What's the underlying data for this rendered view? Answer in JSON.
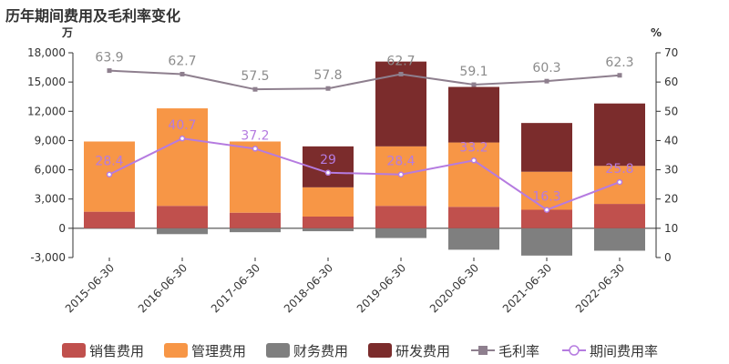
{
  "chart_data": {
    "type": "bar",
    "title": "历年期间费用及毛利率变化",
    "y_left_unit": "万",
    "y_right_unit": "%",
    "y_left_range": [
      -3000,
      18000
    ],
    "y_left_ticks": [
      "18,000",
      "15,000",
      "12,000",
      "9,000",
      "6,000",
      "3,000",
      "0",
      "-3,000"
    ],
    "y_right_range": [
      0,
      70
    ],
    "y_right_ticks": [
      "70",
      "60",
      "50",
      "40",
      "30",
      "20",
      "10",
      "0"
    ],
    "categories": [
      "2015-06-30",
      "2016-06-30",
      "2017-06-30",
      "2018-06-30",
      "2019-06-30",
      "2020-06-30",
      "2021-06-30",
      "2022-06-30"
    ],
    "bar_series": [
      {
        "name": "销售费用",
        "color": "#c0504d",
        "values": [
          1700,
          2300,
          1600,
          1200,
          2300,
          2200,
          1900,
          2500
        ]
      },
      {
        "name": "管理费用",
        "color": "#f79646",
        "values": [
          7200,
          10000,
          7300,
          3000,
          6100,
          6600,
          3900,
          3900
        ]
      },
      {
        "name": "财务费用",
        "color": "#7f7f7f",
        "values": [
          -50,
          -600,
          -400,
          -300,
          -1000,
          -2200,
          -2800,
          -2300
        ]
      },
      {
        "name": "研发费用",
        "color": "#7b2c2c",
        "values": [
          0,
          0,
          0,
          4200,
          8700,
          5700,
          5000,
          6400
        ]
      }
    ],
    "line_series": [
      {
        "name": "毛利率",
        "color": "#8e7f8e",
        "marker": "square",
        "values": [
          63.9,
          62.7,
          57.5,
          57.8,
          62.7,
          59.1,
          60.3,
          62.3
        ],
        "labels": [
          "63.9",
          "62.7",
          "57.5",
          "57.8",
          "62.7",
          "59.1",
          "60.3",
          "62.3"
        ]
      },
      {
        "name": "期间费用率",
        "color": "#b57be0",
        "marker": "circle",
        "values": [
          28.4,
          40.7,
          37.2,
          29,
          28.4,
          33.2,
          16.3,
          25.8
        ],
        "labels": [
          "28.4",
          "40.7",
          "37.2",
          "29",
          "28.4",
          "33.2",
          "16.3",
          "25.8"
        ]
      }
    ],
    "grid": false,
    "legend_position": "bottom"
  }
}
